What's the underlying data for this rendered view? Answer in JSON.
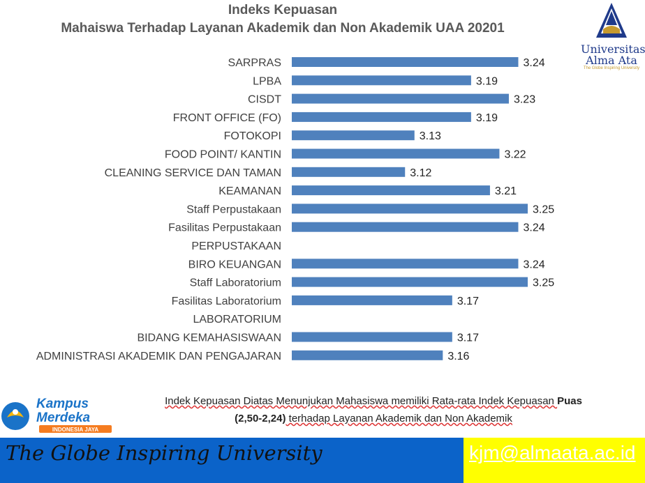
{
  "header": {
    "title_line1": "Indeks Kepuasan",
    "title_line2": "Mahaiswa Terhadap Layanan Akademik dan Non Akademik UAA 20201"
  },
  "logo": {
    "name_line1": "Universitas",
    "name_line2": "Alma Ata",
    "tagline": "The Globe Inspiring University"
  },
  "chart_data": {
    "type": "bar",
    "orientation": "horizontal",
    "bar_color": "#4f81bd",
    "categories": [
      "SARPRAS",
      "LPBA",
      "CISDT",
      "FRONT OFFICE (FO)",
      "FOTOKOPI",
      "FOOD POINT/ KANTIN",
      "CLEANING SERVICE DAN TAMAN",
      "KEAMANAN",
      "Staff Perpustakaan",
      "Fasilitas Perpustakaan",
      "PERPUSTAKAAN",
      "BIRO KEUANGAN",
      "Staff Laboratorium",
      "Fasilitas Laboratorium",
      "LABORATORIUM",
      "BIDANG KEMAHASISWAAN",
      "ADMINISTRASI AKADEMIK DAN PENGAJARAN"
    ],
    "values": [
      3.24,
      3.19,
      3.23,
      3.19,
      3.13,
      3.22,
      3.12,
      3.21,
      3.25,
      3.24,
      null,
      3.24,
      3.25,
      3.17,
      null,
      3.17,
      3.16
    ],
    "value_labels": [
      "3.24",
      "3.19",
      "3.23",
      "3.19",
      "3.13",
      "3.22",
      "3.12",
      "3.21",
      "3.25",
      "3.24",
      "",
      "3.24",
      "3.25",
      "3.17",
      "",
      "3.17",
      "3.16"
    ],
    "xlim": [
      3.0,
      3.25
    ],
    "grid": false,
    "legend": "none"
  },
  "footer": {
    "kampus_merdeka_line1": "Kampus",
    "kampus_merdeka_line2": "Merdeka",
    "kampus_merdeka_sub": "INDONESIA JAYA",
    "statement_line1": "Indek Kepuasan Diatas Menunjukan Mahasiswa memiliki Rata-rata Indek  Kepuasan ",
    "statement_bold1": "Puas",
    "statement_bold2": "(2,50-2,24)",
    "statement_line2": " terhadap Layanan Akademik dan Non Akademik",
    "tagline": "The Globe Inspiring University",
    "email": "kjm@almaata.ac.id"
  }
}
